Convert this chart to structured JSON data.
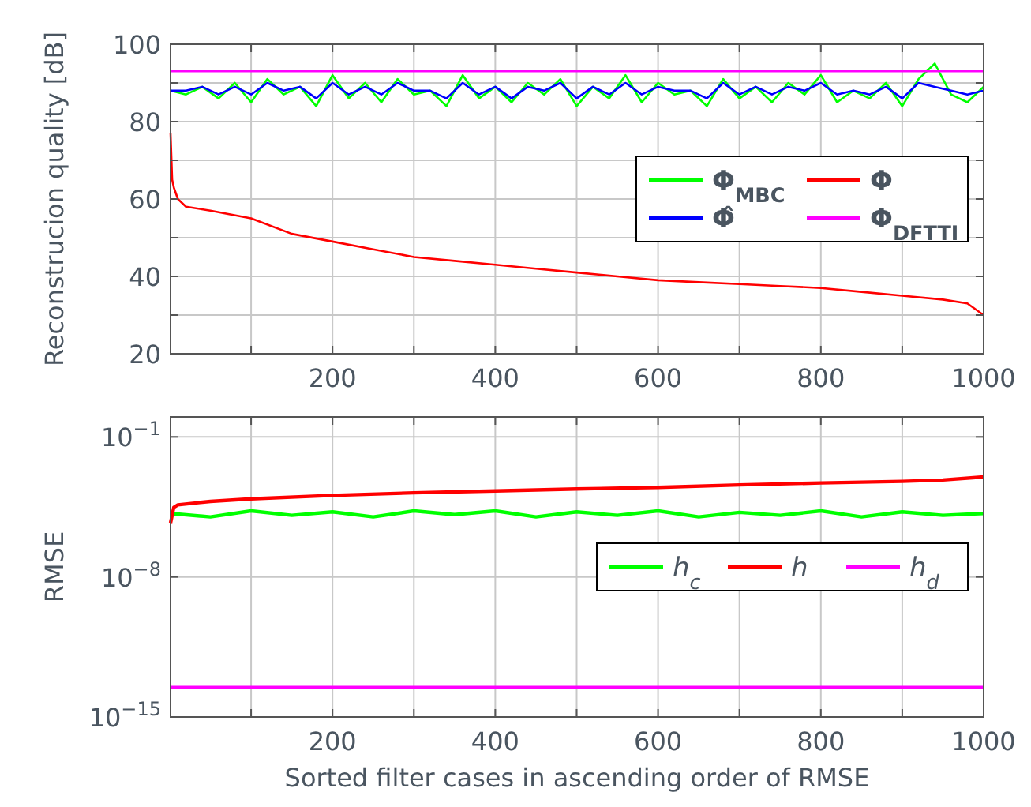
{
  "chart_data": [
    {
      "type": "line",
      "ylabel": "Reconstrucion quality [dB]",
      "xlim": [
        1,
        1000
      ],
      "ylim": [
        20,
        100
      ],
      "xticks": [
        {
          "value": 100,
          "label": null
        },
        200,
        {
          "value": 300,
          "label": null
        },
        400,
        {
          "value": 500,
          "label": null
        },
        600,
        {
          "value": 700,
          "label": null
        },
        800,
        {
          "value": 900,
          "label": null
        },
        1000
      ],
      "yticks": [
        20,
        {
          "value": 30,
          "label": null
        },
        40,
        {
          "value": 50,
          "label": null
        },
        60,
        {
          "value": 70,
          "label": null
        },
        80,
        {
          "value": 90,
          "label": null
        },
        100
      ],
      "grid": true,
      "legend": "right",
      "x": [
        1,
        20,
        40,
        60,
        80,
        100,
        120,
        140,
        160,
        180,
        200,
        220,
        240,
        260,
        280,
        300,
        320,
        340,
        360,
        380,
        400,
        420,
        440,
        460,
        480,
        500,
        520,
        540,
        560,
        580,
        600,
        620,
        640,
        660,
        680,
        700,
        720,
        740,
        760,
        780,
        800,
        820,
        840,
        860,
        880,
        900,
        920,
        940,
        960,
        980,
        1000
      ],
      "series": [
        {
          "name": "Φ$_{MBC}$",
          "color": "#00ff00",
          "values": [
            88,
            87,
            89,
            86,
            90,
            85,
            91,
            87,
            89,
            84,
            92,
            86,
            90,
            85,
            91,
            87,
            88,
            84,
            92,
            86,
            89,
            85,
            90,
            87,
            91,
            84,
            89,
            86,
            92,
            85,
            90,
            87,
            88,
            84,
            91,
            86,
            89,
            85,
            90,
            87,
            92,
            85,
            88,
            86,
            90,
            84,
            91,
            95,
            87,
            85,
            89
          ]
        },
        {
          "name": "Φ",
          "color": "#ff0000",
          "x": [
            1,
            3,
            5,
            10,
            20,
            50,
            100,
            150,
            200,
            250,
            300,
            350,
            400,
            450,
            500,
            550,
            600,
            650,
            700,
            750,
            800,
            850,
            900,
            950,
            980,
            1000
          ],
          "values": [
            77,
            65,
            63,
            60,
            58,
            57,
            55,
            51,
            49,
            47,
            45,
            44,
            43,
            42,
            41,
            40,
            39,
            38.5,
            38,
            37.5,
            37,
            36,
            35,
            34,
            33,
            30
          ]
        },
        {
          "name": "Φ̂",
          "color": "#0000ff",
          "values": [
            88,
            88,
            89,
            87,
            89,
            87,
            90,
            88,
            89,
            86,
            90,
            87,
            89,
            87,
            90,
            88,
            88,
            86,
            90,
            87,
            89,
            86,
            89,
            88,
            90,
            86,
            89,
            87,
            90,
            87,
            89,
            88,
            88,
            86,
            90,
            87,
            89,
            87,
            89,
            88,
            90,
            87,
            88,
            87,
            89,
            86,
            90,
            89,
            88,
            87,
            88
          ]
        },
        {
          "name": "Φ$_{DFTTI}$",
          "color": "#ff00ff",
          "x": [
            1,
            1000
          ],
          "values": [
            93,
            93
          ]
        }
      ]
    },
    {
      "type": "line",
      "xlabel": "Sorted filter cases in ascending order of RMSE",
      "ylabel": "RMSE",
      "log": "y",
      "xlim": [
        1,
        1000
      ],
      "ylim": [
        1e-15,
        1
      ],
      "xticks": [
        {
          "value": 100,
          "label": null
        },
        200,
        {
          "value": 300,
          "label": null
        },
        400,
        {
          "value": 500,
          "label": null
        },
        600,
        {
          "value": 700,
          "label": null
        },
        800,
        {
          "value": 900,
          "label": null
        },
        1000
      ],
      "yticks": [
        {
          "value": 1e-15,
          "label": "10$^{−15}$"
        },
        {
          "value": 1e-08,
          "label": "10$^{−8}$"
        },
        {
          "value": 0.1,
          "label": "10$^{−1}$"
        }
      ],
      "grid": true,
      "legend": "right",
      "x": [
        1,
        50,
        100,
        150,
        200,
        250,
        300,
        350,
        400,
        450,
        500,
        550,
        600,
        650,
        700,
        750,
        800,
        850,
        900,
        950,
        1000
      ],
      "series": [
        {
          "name": "h$_{c}$",
          "color": "#00ff00",
          "values": [
            1.5e-05,
            1e-05,
            2e-05,
            1.2e-05,
            1.8e-05,
            1e-05,
            2e-05,
            1.3e-05,
            2e-05,
            1e-05,
            1.8e-05,
            1.2e-05,
            2e-05,
            1e-05,
            1.7e-05,
            1.2e-05,
            2e-05,
            1e-05,
            1.8e-05,
            1.2e-05,
            1.5e-05
          ]
        },
        {
          "name": "h",
          "color": "#ff0000",
          "x": [
            1,
            5,
            10,
            50,
            100,
            200,
            300,
            400,
            500,
            600,
            700,
            800,
            900,
            950,
            1000
          ],
          "values": [
            5e-06,
            3e-05,
            4e-05,
            6e-05,
            8e-05,
            0.00012,
            0.00016,
            0.0002,
            0.00025,
            0.0003,
            0.0004,
            0.0005,
            0.0006,
            0.0007,
            0.001
          ]
        },
        {
          "name": "h$_{d}$",
          "color": "#ff00ff",
          "x": [
            1,
            1000
          ],
          "values": [
            3e-14,
            3e-14
          ]
        }
      ]
    }
  ]
}
